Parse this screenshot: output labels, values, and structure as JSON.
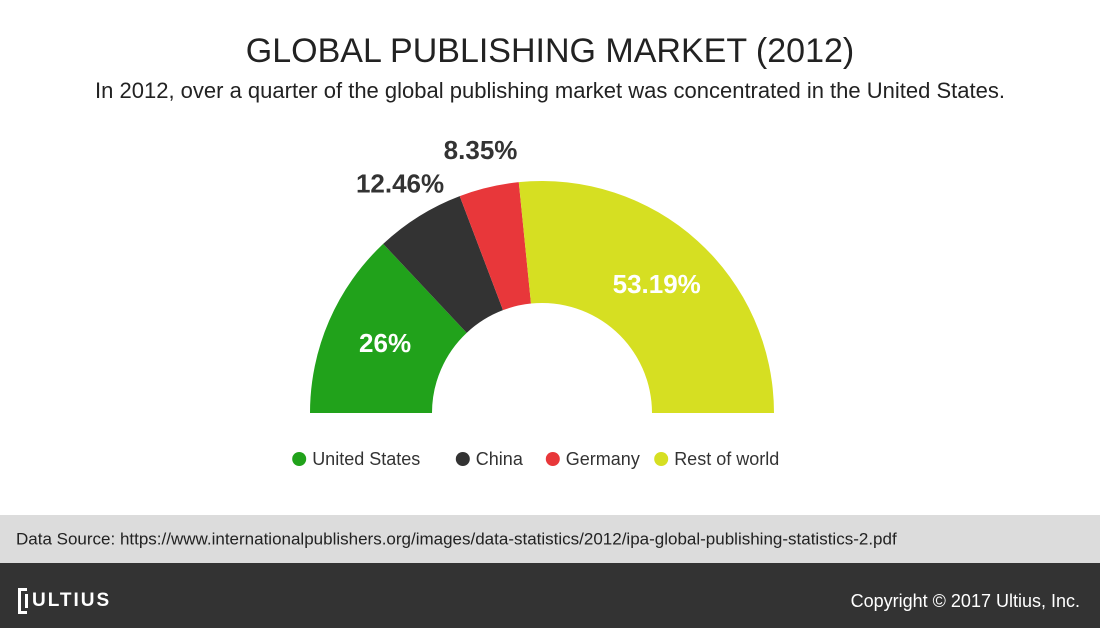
{
  "chart_data": {
    "type": "half-donut",
    "title": "GLOBAL PUBLISHING MARKET (2012)",
    "subtitle": "In 2012, over a quarter of the global publishing market was concentrated in the United States.",
    "categories": [
      "United States",
      "China",
      "Germany",
      "Rest of world"
    ],
    "values": [
      26,
      12.46,
      8.35,
      53.19
    ],
    "value_labels": [
      "26%",
      "12.46%",
      "8.35%",
      "53.19%"
    ],
    "colors": [
      "#21a21b",
      "#333333",
      "#e8373a",
      "#d6df22"
    ],
    "legend": "bottom"
  },
  "footer": {
    "source": "Data Source: https://www.internationalpublishers.org/images/data-statistics/2012/ipa-global-publishing-statistics-2.pdf",
    "logo": "ULTIUS",
    "copyright": "Copyright © 2017 Ultius, Inc."
  }
}
